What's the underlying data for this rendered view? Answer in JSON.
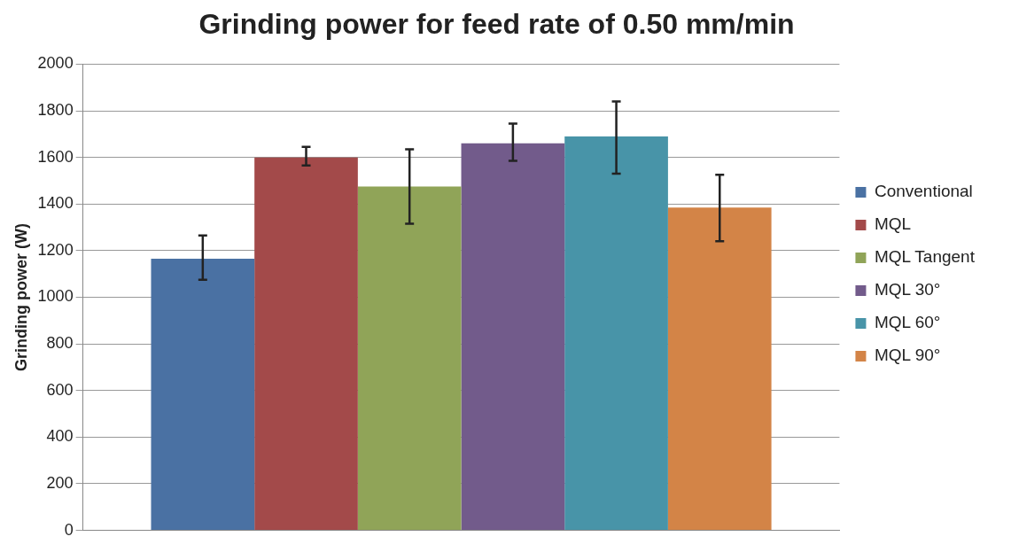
{
  "chart_data": {
    "type": "bar",
    "title": "Grinding power for feed rate of 0.50 mm/min",
    "ylabel": "Grinding power (W)",
    "categories": [
      null
    ],
    "series": [
      {
        "name": "Conventional",
        "color": "#4a71a3",
        "values": [
          1165
        ],
        "errors": [
          [
            1075,
            1265
          ]
        ]
      },
      {
        "name": "MQL",
        "color": "#a34a4a",
        "values": [
          1600
        ],
        "errors": [
          [
            1565,
            1645
          ]
        ]
      },
      {
        "name": "MQL Tangent",
        "color": "#90a458",
        "values": [
          1475
        ],
        "errors": [
          [
            1315,
            1635
          ]
        ]
      },
      {
        "name": "MQL 30°",
        "color": "#725b8b",
        "values": [
          1660
        ],
        "errors": [
          [
            1585,
            1745
          ]
        ]
      },
      {
        "name": "MQL 60°",
        "color": "#4894a8",
        "values": [
          1690
        ],
        "errors": [
          [
            1530,
            1840
          ]
        ]
      },
      {
        "name": "MQL 90°",
        "color": "#d38447",
        "values": [
          1385
        ],
        "errors": [
          [
            1240,
            1525
          ]
        ]
      }
    ],
    "ylim": [
      0,
      2000
    ],
    "yticks": [
      0,
      200,
      400,
      600,
      800,
      1000,
      1200,
      1400,
      1600,
      1800,
      2000
    ],
    "grid": "y",
    "legend": "right"
  }
}
